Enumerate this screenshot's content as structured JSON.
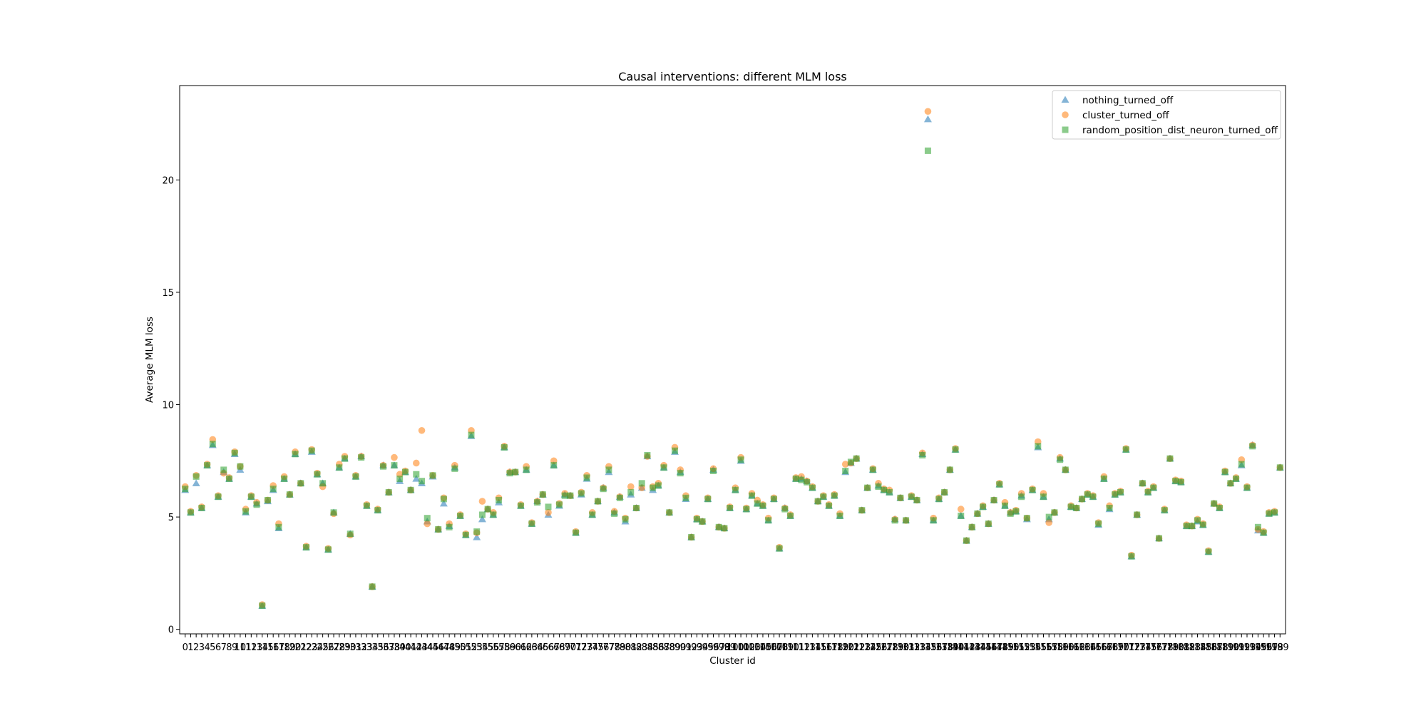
{
  "chart_data": {
    "type": "scatter",
    "title": "Causal interventions: different MLM loss",
    "xlabel": "Cluster id",
    "ylabel": "Average MLM loss",
    "xlim": [
      -1,
      200
    ],
    "ylim": [
      -0.2,
      24.2
    ],
    "y_ticks": [
      0,
      5,
      10,
      15,
      20
    ],
    "x_tick_step": 1,
    "grid": false,
    "legend_position": "top-right",
    "series": [
      {
        "name": "nothing_turned_off",
        "marker": "triangle",
        "color": "#1f77b4",
        "values": [
          6.2,
          5.2,
          6.5,
          5.4,
          7.3,
          8.2,
          5.9,
          7.0,
          6.7,
          7.8,
          7.1,
          5.2,
          5.9,
          5.6,
          1.05,
          5.7,
          6.2,
          4.5,
          6.7,
          6.0,
          7.8,
          6.5,
          3.65,
          7.9,
          6.9,
          6.5,
          3.55,
          5.2,
          7.2,
          7.6,
          4.25,
          6.8,
          7.7,
          5.5,
          1.9,
          5.3,
          7.3,
          6.1,
          7.3,
          6.6,
          7.0,
          6.2,
          6.7,
          6.5,
          4.8,
          6.8,
          4.45,
          5.6,
          4.6,
          7.2,
          5.05,
          4.2,
          8.6,
          4.1,
          4.9,
          5.35,
          5.1,
          5.65,
          8.1,
          7.0,
          7.0,
          5.5,
          7.1,
          4.7,
          5.7,
          6.0,
          5.1,
          7.3,
          5.5,
          6.0,
          5.95,
          4.3,
          6.0,
          6.7,
          5.1,
          5.7,
          6.3,
          7.0,
          5.2,
          5.9,
          4.8,
          6.0,
          5.4,
          6.3,
          7.7,
          6.2,
          6.4,
          7.2,
          5.2,
          7.9,
          7.0,
          5.8,
          4.1,
          4.9,
          4.8,
          5.8,
          7.1,
          4.55,
          4.5,
          5.4,
          6.2,
          7.5,
          5.35,
          5.95,
          5.6,
          5.5,
          4.85,
          5.8,
          3.6,
          5.4,
          5.05,
          6.7,
          6.7,
          6.6,
          6.3,
          5.7,
          5.9,
          5.5,
          5.95,
          5.05,
          7.0,
          7.4,
          7.6,
          5.3,
          6.3,
          7.1,
          6.4,
          6.2,
          6.1,
          4.9,
          5.85,
          4.85,
          5.9,
          5.75,
          7.8,
          22.7,
          4.85,
          5.8,
          6.1,
          7.1,
          8.0,
          5.05,
          3.95,
          4.55,
          5.15,
          5.45,
          4.7,
          5.75,
          6.45,
          5.5,
          5.2,
          5.25,
          5.95,
          4.9,
          6.2,
          8.1,
          5.9,
          4.9,
          5.2,
          7.6,
          7.1,
          5.45,
          5.4,
          5.8,
          6.0,
          5.9,
          4.65,
          6.7,
          5.35,
          6.0,
          6.1,
          8.0,
          3.25,
          5.1,
          6.5,
          6.1,
          6.3,
          4.05,
          5.3,
          7.6,
          6.6,
          6.55,
          4.6,
          4.6,
          4.8,
          4.65,
          3.45,
          5.6,
          5.4,
          7.0,
          6.5,
          6.7,
          7.3,
          6.3,
          8.2,
          4.4,
          4.3,
          5.15,
          5.2,
          7.2
        ]
      },
      {
        "name": "cluster_turned_off",
        "marker": "circle",
        "color": "#ff7f0e",
        "values": [
          6.35,
          5.25,
          6.85,
          5.45,
          7.35,
          8.45,
          5.95,
          6.95,
          6.75,
          7.9,
          7.25,
          5.35,
          5.95,
          5.65,
          1.1,
          5.75,
          6.4,
          4.7,
          6.8,
          6.0,
          7.9,
          6.5,
          3.7,
          8.0,
          6.95,
          6.35,
          3.6,
          5.15,
          7.35,
          7.7,
          4.2,
          6.85,
          7.7,
          5.55,
          1.9,
          5.35,
          7.3,
          6.1,
          7.65,
          6.9,
          7.05,
          6.2,
          7.4,
          8.85,
          4.7,
          6.85,
          4.45,
          5.85,
          4.7,
          7.3,
          5.1,
          4.25,
          8.85,
          4.3,
          5.7,
          5.35,
          5.2,
          5.85,
          8.15,
          7.0,
          7.0,
          5.55,
          7.25,
          4.75,
          5.7,
          6.0,
          5.2,
          7.5,
          5.6,
          6.05,
          5.95,
          4.35,
          6.1,
          6.85,
          5.2,
          5.7,
          6.3,
          7.25,
          5.25,
          5.9,
          4.95,
          6.35,
          5.4,
          6.3,
          7.7,
          6.35,
          6.5,
          7.3,
          5.2,
          8.1,
          7.1,
          5.95,
          4.1,
          4.95,
          4.8,
          5.85,
          7.15,
          4.55,
          4.5,
          5.45,
          6.3,
          7.65,
          5.4,
          6.05,
          5.75,
          5.55,
          4.95,
          5.85,
          3.65,
          5.4,
          5.1,
          6.75,
          6.8,
          6.6,
          6.35,
          5.7,
          5.95,
          5.55,
          6.0,
          5.15,
          7.35,
          7.4,
          7.6,
          5.3,
          6.3,
          7.15,
          6.5,
          6.25,
          6.2,
          4.9,
          5.85,
          4.85,
          5.95,
          5.75,
          7.85,
          23.05,
          4.95,
          5.85,
          6.1,
          7.1,
          8.05,
          5.35,
          3.95,
          4.55,
          5.15,
          5.5,
          4.7,
          5.75,
          6.5,
          5.65,
          5.2,
          5.3,
          6.05,
          4.95,
          6.25,
          8.35,
          6.05,
          4.75,
          5.2,
          7.65,
          7.1,
          5.5,
          5.4,
          5.8,
          6.05,
          5.95,
          4.75,
          6.8,
          5.5,
          6.05,
          6.15,
          8.05,
          3.3,
          5.1,
          6.5,
          6.15,
          6.35,
          4.05,
          5.35,
          7.6,
          6.65,
          6.6,
          4.65,
          4.6,
          4.9,
          4.7,
          3.5,
          5.6,
          5.45,
          7.05,
          6.5,
          6.75,
          7.55,
          6.35,
          8.2,
          4.45,
          4.35,
          5.2,
          5.25,
          7.2
        ]
      },
      {
        "name": "random_position_dist_neuron_turned_off",
        "marker": "square",
        "color": "#2ca02c",
        "values": [
          6.25,
          5.2,
          6.8,
          5.4,
          7.3,
          8.25,
          5.9,
          7.1,
          6.7,
          7.85,
          7.25,
          5.25,
          5.9,
          5.55,
          1.05,
          5.75,
          6.25,
          4.55,
          6.7,
          6.0,
          7.8,
          6.5,
          3.65,
          7.95,
          6.9,
          6.5,
          3.55,
          5.2,
          7.2,
          7.6,
          4.25,
          6.8,
          7.65,
          5.5,
          1.9,
          5.3,
          7.25,
          6.1,
          7.3,
          6.7,
          7.0,
          6.2,
          6.9,
          6.6,
          4.95,
          6.85,
          4.45,
          5.8,
          4.55,
          7.15,
          5.05,
          4.2,
          8.65,
          4.35,
          5.1,
          5.35,
          5.1,
          5.75,
          8.1,
          6.95,
          7.0,
          5.5,
          7.1,
          4.7,
          5.65,
          6.0,
          5.45,
          7.3,
          5.55,
          5.95,
          5.95,
          4.3,
          6.05,
          6.75,
          5.1,
          5.7,
          6.25,
          7.1,
          5.15,
          5.85,
          4.9,
          6.1,
          5.4,
          6.5,
          7.75,
          6.3,
          6.4,
          7.2,
          5.2,
          7.95,
          6.95,
          5.85,
          4.1,
          4.9,
          4.8,
          5.8,
          7.05,
          4.55,
          4.5,
          5.4,
          6.2,
          7.55,
          5.35,
          5.95,
          5.6,
          5.5,
          4.85,
          5.8,
          3.6,
          5.35,
          5.05,
          6.7,
          6.65,
          6.55,
          6.3,
          5.7,
          5.9,
          5.5,
          5.95,
          5.05,
          7.05,
          7.45,
          7.6,
          5.3,
          6.3,
          7.1,
          6.35,
          6.2,
          6.1,
          4.85,
          5.85,
          4.85,
          5.9,
          5.75,
          7.75,
          21.3,
          4.85,
          5.8,
          6.1,
          7.1,
          8.0,
          5.05,
          3.95,
          4.55,
          5.15,
          5.45,
          4.7,
          5.75,
          6.45,
          5.5,
          5.15,
          5.25,
          5.9,
          4.95,
          6.2,
          8.15,
          5.9,
          5.0,
          5.2,
          7.55,
          7.1,
          5.45,
          5.4,
          5.8,
          6.0,
          5.9,
          4.7,
          6.7,
          5.4,
          6.0,
          6.1,
          8.0,
          3.25,
          5.1,
          6.5,
          6.1,
          6.3,
          4.05,
          5.3,
          7.6,
          6.6,
          6.55,
          4.6,
          4.6,
          4.85,
          4.65,
          3.45,
          5.6,
          5.4,
          7.0,
          6.5,
          6.7,
          7.35,
          6.3,
          8.15,
          4.55,
          4.3,
          5.15,
          5.2,
          7.2
        ]
      }
    ]
  }
}
